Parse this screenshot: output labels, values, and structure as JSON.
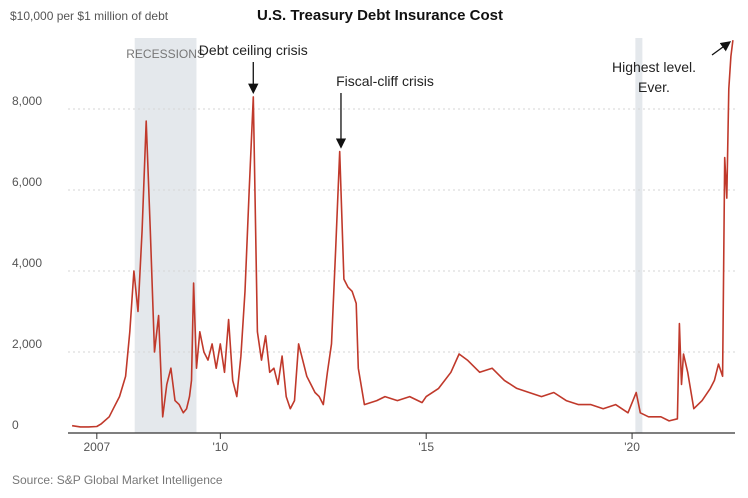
{
  "chart_data": {
    "type": "line",
    "title": "U.S. Treasury Debt Insurance Cost",
    "y_unit_label": "$10,000 per $1 million of debt",
    "ylim": [
      0,
      10000
    ],
    "xlim": [
      2006.3,
      2022.5
    ],
    "y_ticks": [
      {
        "value": 0,
        "label": "0"
      },
      {
        "value": 2000,
        "label": "2,000"
      },
      {
        "value": 4000,
        "label": "4,000"
      },
      {
        "value": 6000,
        "label": "6,000"
      },
      {
        "value": 8000,
        "label": "8,000"
      }
    ],
    "x_ticks": [
      {
        "value": 2007,
        "label": "2007"
      },
      {
        "value": 2010,
        "label": "'10"
      },
      {
        "value": 2015,
        "label": "'15"
      },
      {
        "value": 2020,
        "label": "'20"
      }
    ],
    "recessions": [
      {
        "label": "RECESSIONS",
        "start": 2007.92,
        "end": 2009.42
      },
      {
        "label": "",
        "start": 2020.08,
        "end": 2020.25
      }
    ],
    "annotations": [
      {
        "text": "Debt ceiling crisis",
        "x": 2010.8,
        "y": 8300
      },
      {
        "text": "Fiscal-cliff crisis",
        "x": 2012.93,
        "y": 6950
      },
      {
        "text": "Highest level.",
        "text2": "Ever.",
        "x": 2022.4,
        "y": 9700
      }
    ],
    "source": "Source: S&P Global Market Intelligence",
    "grid": true,
    "series": [
      {
        "color": "#c0392b",
        "x": [
          2006.4,
          2006.6,
          2006.8,
          2007.0,
          2007.1,
          2007.3,
          2007.4,
          2007.55,
          2007.7,
          2007.8,
          2007.9,
          2008.0,
          2008.1,
          2008.2,
          2008.3,
          2008.4,
          2008.5,
          2008.6,
          2008.7,
          2008.8,
          2008.9,
          2009.0,
          2009.05,
          2009.1,
          2009.18,
          2009.25,
          2009.3,
          2009.35,
          2009.42,
          2009.5,
          2009.6,
          2009.7,
          2009.8,
          2009.9,
          2010.0,
          2010.1,
          2010.2,
          2010.3,
          2010.4,
          2010.5,
          2010.6,
          2010.7,
          2010.8,
          2010.9,
          2011.0,
          2011.1,
          2011.2,
          2011.3,
          2011.4,
          2011.5,
          2011.6,
          2011.7,
          2011.8,
          2011.9,
          2012.0,
          2012.1,
          2012.2,
          2012.3,
          2012.4,
          2012.5,
          2012.6,
          2012.7,
          2012.8,
          2012.9,
          2013.0,
          2013.1,
          2013.2,
          2013.3,
          2013.35,
          2013.5,
          2013.8,
          2014.0,
          2014.3,
          2014.6,
          2014.9,
          2015.0,
          2015.3,
          2015.6,
          2015.8,
          2016.0,
          2016.3,
          2016.6,
          2016.9,
          2017.2,
          2017.5,
          2017.8,
          2018.1,
          2018.4,
          2018.7,
          2019.0,
          2019.3,
          2019.6,
          2019.9,
          2020.1,
          2020.2,
          2020.4,
          2020.7,
          2020.9,
          2021.1,
          2021.15,
          2021.2,
          2021.25,
          2021.35,
          2021.5,
          2021.7,
          2021.9,
          2022.0,
          2022.1,
          2022.2,
          2022.25,
          2022.3,
          2022.35,
          2022.4,
          2022.45
        ],
        "y": [
          180,
          150,
          150,
          160,
          220,
          400,
          600,
          900,
          1400,
          2500,
          4000,
          3000,
          5000,
          7700,
          5000,
          2000,
          2900,
          400,
          1200,
          1600,
          800,
          700,
          600,
          500,
          600,
          900,
          1300,
          3700,
          1600,
          2500,
          2000,
          1800,
          2200,
          1600,
          2200,
          1500,
          2800,
          1300,
          900,
          1900,
          3500,
          6000,
          8300,
          2500,
          1800,
          2400,
          1500,
          1600,
          1200,
          1900,
          900,
          600,
          800,
          2200,
          1800,
          1400,
          1200,
          1000,
          900,
          700,
          1500,
          2200,
          4500,
          6950,
          3800,
          3600,
          3500,
          3200,
          1600,
          700,
          800,
          900,
          800,
          900,
          750,
          900,
          1100,
          1500,
          1950,
          1800,
          1500,
          1600,
          1300,
          1100,
          1000,
          900,
          1000,
          800,
          700,
          700,
          600,
          700,
          500,
          1000,
          500,
          400,
          400,
          300,
          350,
          2700,
          1200,
          1950,
          1500,
          600,
          800,
          1100,
          1300,
          1700,
          1400,
          6800,
          5800,
          8500,
          9300,
          9700
        ]
      }
    ]
  }
}
